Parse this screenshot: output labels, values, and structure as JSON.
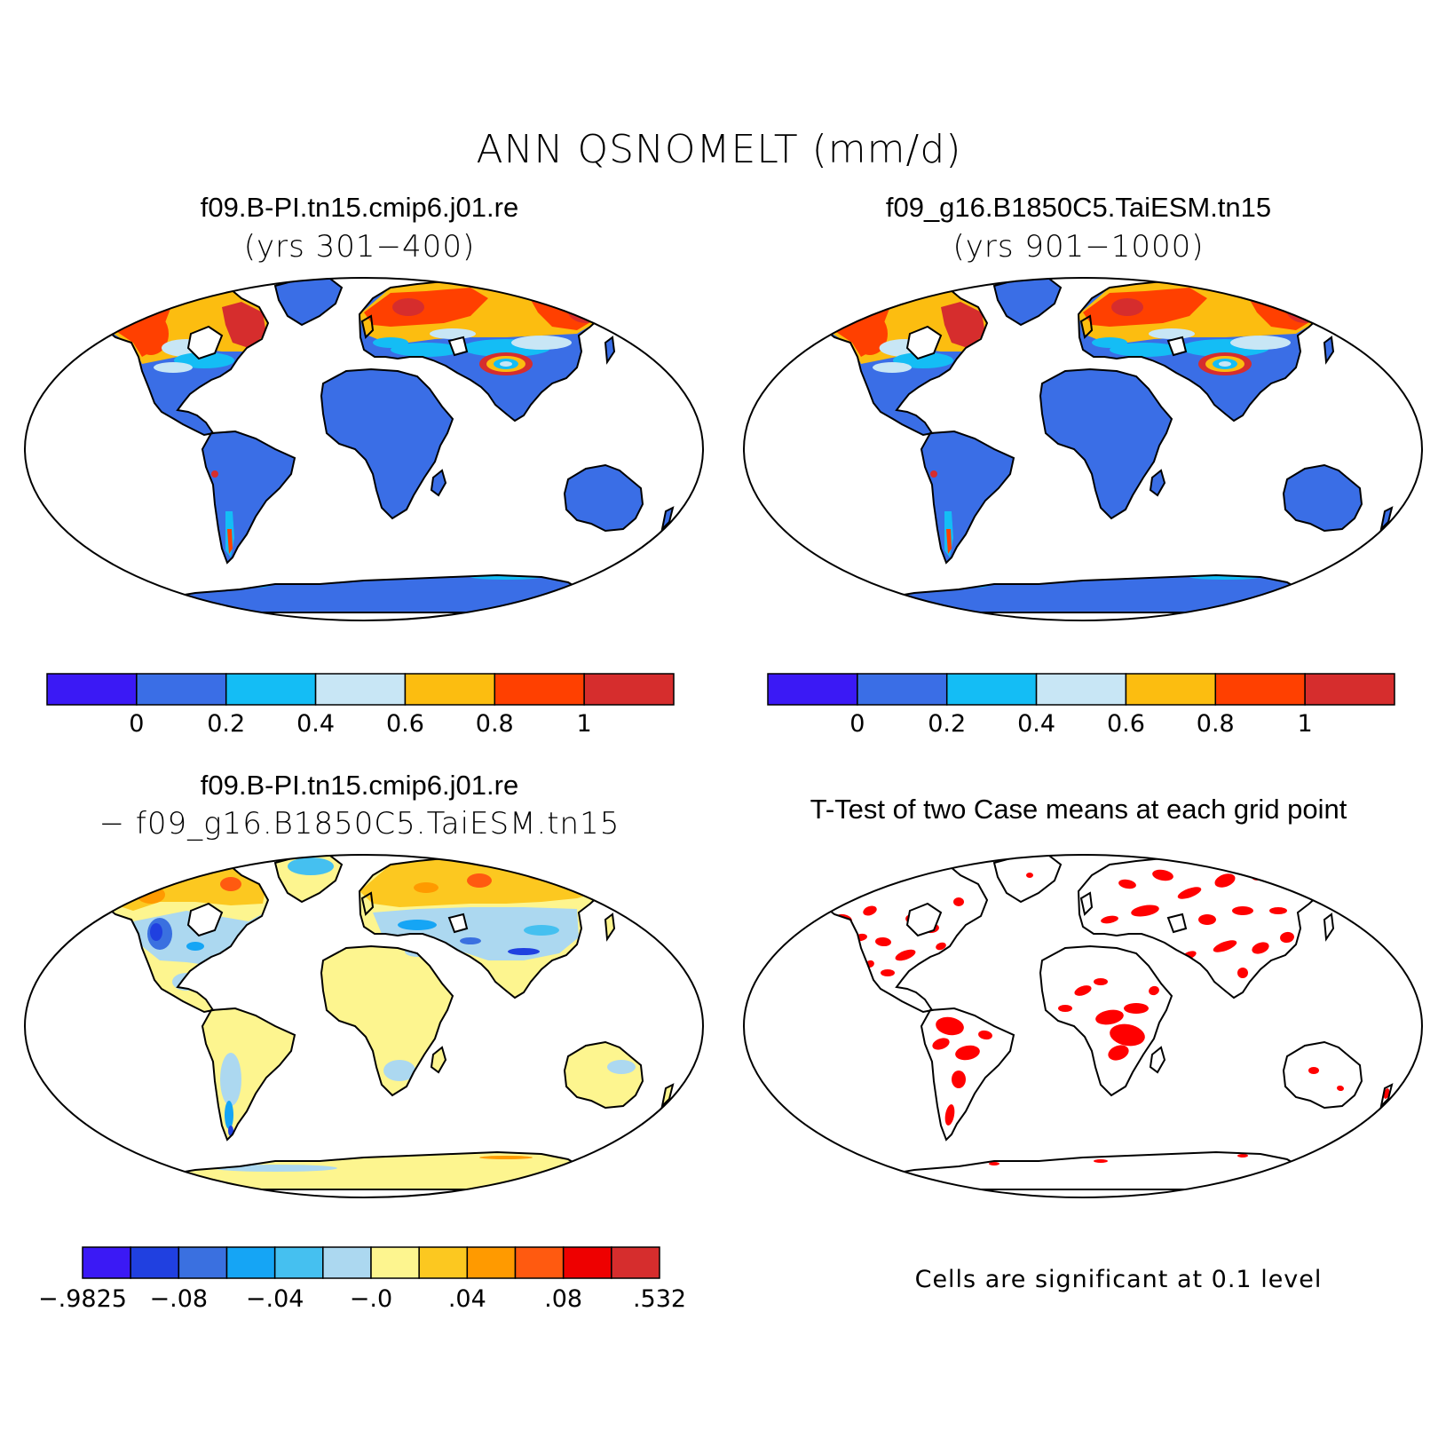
{
  "title": "ANN QSNOMELT (mm/d)",
  "panels": [
    {
      "title": "f09.B-PI.tn15.cmip6.j01.re",
      "subtitle": "(yrs 301−400)"
    },
    {
      "title": "f09_g16.B1850C5.TaiESM.tn15",
      "subtitle": "(yrs 901−1000)"
    },
    {
      "title": "f09.B-PI.tn15.cmip6.j01.re",
      "subtitle": "− f09_g16.B1850C5.TaiESM.tn15"
    },
    {
      "title": "T-Test of two Case means at each grid point",
      "subtitle": ""
    }
  ],
  "colorbars": {
    "mean": {
      "colors": [
        "#3b19f5",
        "#3a6ee6",
        "#14bdf5",
        "#c8e6f5",
        "#fcbd10",
        "#ff4000",
        "#d62d2d"
      ],
      "labels": [
        "0",
        "0.2",
        "0.4",
        "0.6",
        "0.8",
        "1"
      ]
    },
    "diff": {
      "colors": [
        "#3b19f5",
        "#2040e0",
        "#3a70e0",
        "#15a5f5",
        "#45c0f0",
        "#acd8f0",
        "#fdf58f",
        "#fcc820",
        "#ff9a00",
        "#ff5a10",
        "#ee0000",
        "#d62d2d"
      ],
      "labels": [
        "−.9825",
        "−.08",
        "−.04",
        "−.0",
        ".04",
        ".08",
        ".532"
      ]
    }
  },
  "significance_note": "Cells are significant at 0.1 level",
  "map_colors": {
    "ocean": "#ffffff",
    "land_base_mean": "#3a6ee6",
    "land_base_diff": "#fdf58f",
    "significant": "#ff0000",
    "coast": "#000000"
  }
}
